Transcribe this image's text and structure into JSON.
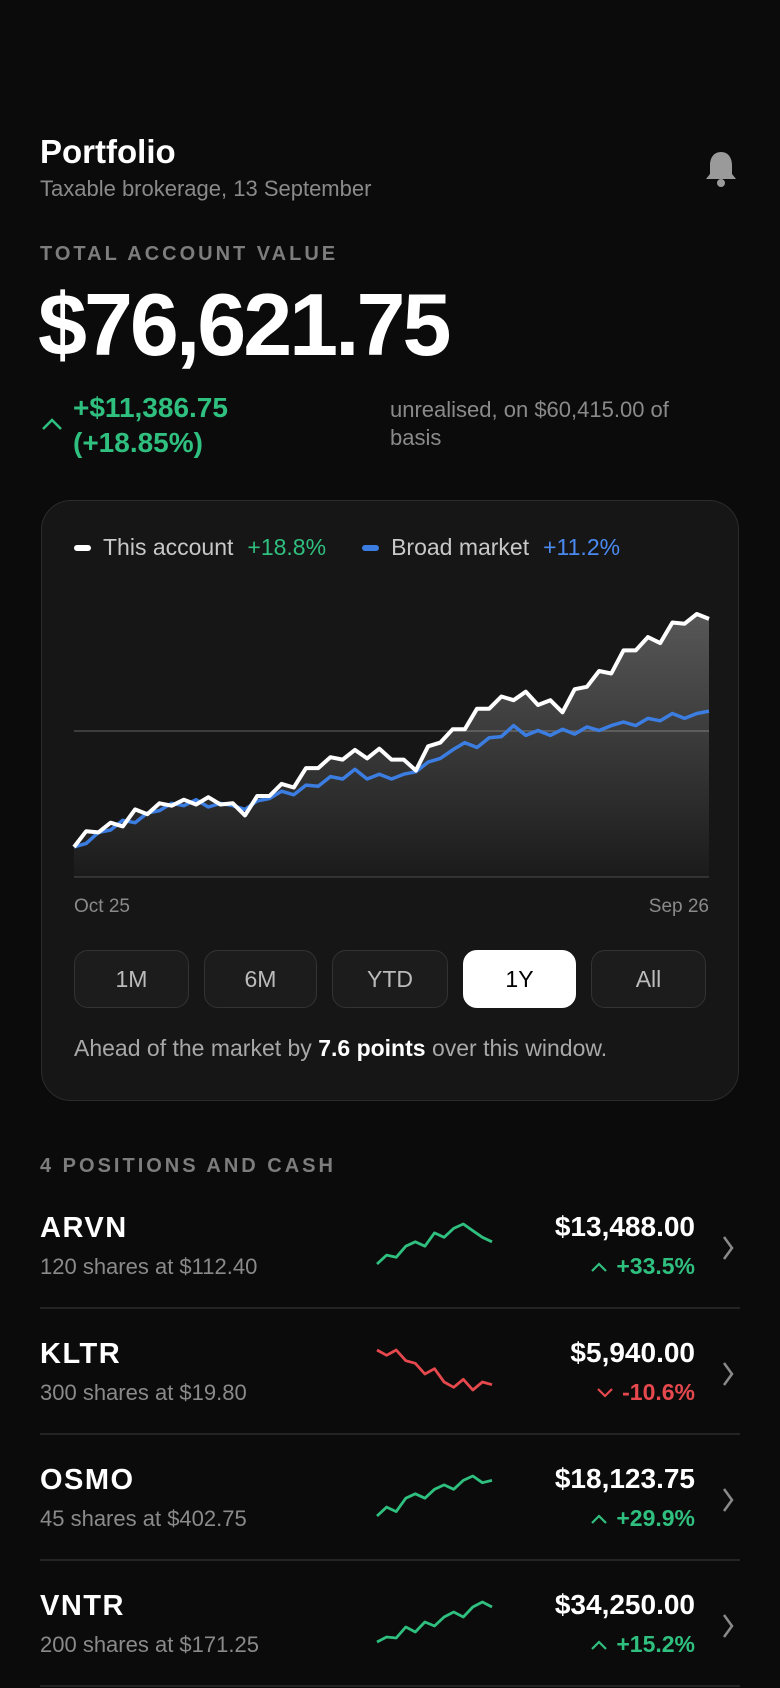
{
  "header": {
    "title": "Portfolio",
    "subtitle": "Taxable brokerage, 13 September"
  },
  "summary": {
    "label": "TOTAL ACCOUNT VALUE",
    "value": "$76,621.75",
    "change": "+$11,386.75 (+18.85%)",
    "change_color": "#2fbf7f",
    "note": "unrealised, on $60,415.00 of basis"
  },
  "chart_data": {
    "type": "line",
    "categories": [
      "Oct 25",
      null,
      null,
      null,
      null,
      null,
      null,
      null,
      null,
      null,
      null,
      null,
      null,
      null,
      null,
      null,
      null,
      null,
      null,
      null,
      null,
      null,
      null,
      null,
      null,
      null,
      null,
      null,
      null,
      null,
      null,
      null,
      null,
      null,
      null,
      null,
      null,
      null,
      null,
      null,
      null,
      null,
      null,
      null,
      null,
      null,
      null,
      null,
      null,
      null,
      null,
      null,
      "Sep 26"
    ],
    "series": [
      {
        "name": "This account",
        "color": "#ffffff",
        "change": "+18.8%",
        "change_color": "#2fbf7f",
        "values": [
          0,
          1.3,
          1.2,
          2.0,
          1.7,
          3.1,
          2.7,
          3.6,
          3.4,
          3.9,
          3.5,
          4.1,
          3.5,
          3.6,
          2.6,
          4.2,
          4.2,
          5.2,
          4.9,
          6.5,
          6.5,
          7.4,
          7.2,
          8.0,
          7.3,
          8.1,
          7.2,
          7.2,
          6.3,
          8.3,
          8.6,
          9.7,
          9.7,
          11.4,
          11.4,
          12.4,
          12.1,
          12.8,
          11.7,
          12.1,
          11.1,
          13.0,
          13.2,
          14.5,
          14.3,
          16.2,
          16.2,
          17.3,
          16.8,
          18.5,
          18.4,
          19.2,
          18.8
        ]
      },
      {
        "name": "Broad market",
        "color": "#3b7de0",
        "change": "+11.2%",
        "change_color": "#4a8af0",
        "values": [
          0,
          0.3,
          1.2,
          1.4,
          2.2,
          2.0,
          2.8,
          3.0,
          3.6,
          3.4,
          3.9,
          3.3,
          3.6,
          3.4,
          3.1,
          3.8,
          4.0,
          4.6,
          4.3,
          5.1,
          5.0,
          5.8,
          5.6,
          6.4,
          5.6,
          6.0,
          5.6,
          6.0,
          6.2,
          7.0,
          7.3,
          8.0,
          8.6,
          8.2,
          9.0,
          9.1,
          10.0,
          9.2,
          9.6,
          9.2,
          9.7,
          9.3,
          9.9,
          9.6,
          10.0,
          10.3,
          10.0,
          10.6,
          10.4,
          11.0,
          10.6,
          11.0,
          11.2
        ]
      }
    ]
  },
  "ranges": {
    "options": [
      "1M",
      "6M",
      "YTD",
      "1Y",
      "All"
    ],
    "selected": 3
  },
  "comparison": {
    "before": "Ahead of the market by",
    "emphasis": "7.6 points",
    "after": "over this window."
  },
  "positions": {
    "title": "4 POSITIONS AND CASH",
    "items": [
      {
        "ticker": "ARVN",
        "detail": "120 shares at $112.40",
        "value": "$13,488.00",
        "change": "+33.5%",
        "direction": "up",
        "color": "#2fbf7f",
        "trend": [
          1,
          3,
          2.5,
          5,
          6,
          5,
          8,
          7,
          9,
          10,
          8.5,
          7,
          6
        ]
      },
      {
        "ticker": "KLTR",
        "detail": "300 shares at $19.80",
        "value": "$5,940.00",
        "change": "-10.6%",
        "direction": "down",
        "color": "#e5484d",
        "trend": [
          9,
          8,
          9,
          7,
          6.5,
          4.5,
          5.5,
          3,
          2,
          3.5,
          1.5,
          3,
          2.5
        ]
      },
      {
        "ticker": "OSMO",
        "detail": "45 shares at $402.75",
        "value": "$18,123.75",
        "change": "+29.9%",
        "direction": "up",
        "color": "#2fbf7f",
        "trend": [
          1,
          3,
          2,
          5,
          6,
          5,
          7,
          8,
          7,
          9,
          10,
          8.5,
          9
        ]
      },
      {
        "ticker": "VNTR",
        "detail": "200 shares at $171.25",
        "value": "$34,250.00",
        "change": "+15.2%",
        "direction": "up",
        "color": "#2fbf7f",
        "trend": [
          1,
          2,
          1.8,
          4,
          3,
          5,
          4.2,
          6,
          7,
          6,
          8,
          9,
          8
        ]
      }
    ]
  }
}
